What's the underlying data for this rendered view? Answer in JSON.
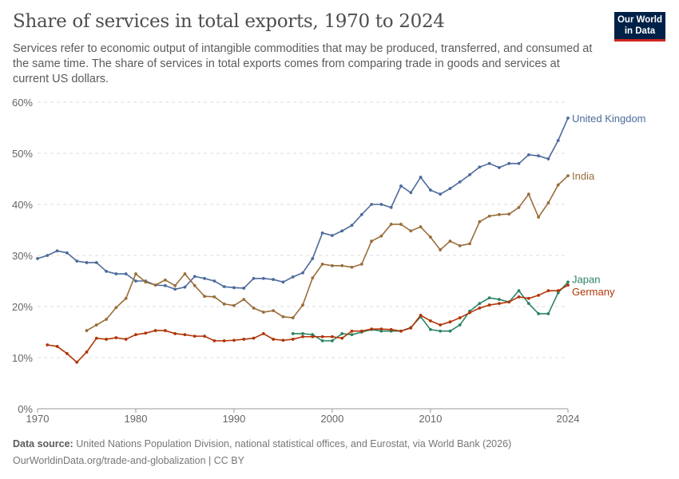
{
  "header": {
    "title": "Share of services in total exports, 1970 to 2024",
    "subtitle": "Services refer to economic output of intangible commodities that may be produced, transferred, and consumed at the same time. The share of services in total exports comes from comparing trade in goods and services at current US dollars.",
    "logo": "Our World in Data"
  },
  "footer": {
    "source_label": "Data source:",
    "source": "United Nations Population Division, national statistical offices, and Eurostat, via World Bank (2026)",
    "url": "OurWorldinData.org/trade-and-globalization | CC BY"
  },
  "chart_data": {
    "type": "line",
    "title": "Share of services in total exports, 1970 to 2024",
    "xlim": [
      1970,
      2024
    ],
    "ylim": [
      0,
      60
    ],
    "grid": true,
    "y_unit": "%",
    "xticks": [
      1970,
      1980,
      1990,
      2000,
      2010,
      2024
    ],
    "yticks": [
      0,
      10,
      20,
      30,
      40,
      50,
      60
    ],
    "ytick_labels": [
      "0%",
      "10%",
      "20%",
      "30%",
      "40%",
      "50%",
      "60%"
    ],
    "legend": "right-inline labels",
    "series": [
      {
        "name": "United Kingdom",
        "color": "#4c6a9c",
        "start": 1970,
        "values": [
          29.4,
          30.0,
          30.9,
          30.5,
          28.9,
          28.6,
          28.6,
          26.9,
          26.4,
          26.4,
          25.0,
          25.0,
          24.2,
          24.1,
          23.4,
          23.8,
          25.9,
          25.5,
          25.0,
          23.9,
          23.7,
          23.6,
          25.5,
          25.5,
          25.3,
          24.8,
          25.8,
          26.6,
          29.4,
          34.4,
          33.9,
          34.8,
          35.9,
          38.0,
          40.0,
          40.0,
          39.4,
          43.6,
          42.3,
          45.3,
          42.8,
          42.0,
          43.1,
          44.4,
          45.8,
          47.3,
          48.0,
          47.2,
          48.0,
          48.0,
          49.7,
          49.5,
          48.9,
          52.5,
          56.9
        ]
      },
      {
        "name": "India",
        "color": "#996d39",
        "start": 1975,
        "values": [
          15.3,
          16.4,
          17.5,
          19.8,
          21.6,
          26.4,
          24.8,
          24.2,
          25.2,
          24.1,
          26.4,
          24.1,
          22.0,
          21.9,
          20.5,
          20.2,
          21.4,
          19.7,
          18.9,
          19.2,
          18.0,
          17.8,
          20.3,
          25.6,
          28.3,
          28.0,
          28.0,
          27.7,
          28.3,
          32.8,
          33.8,
          36.1,
          36.1,
          34.8,
          35.6,
          33.6,
          31.1,
          32.8,
          31.9,
          32.3,
          36.6,
          37.7,
          38.0,
          38.1,
          39.4,
          42.0,
          37.5,
          40.3,
          43.8,
          45.6
        ]
      },
      {
        "name": "Japan",
        "color": "#2c8465",
        "start": 1996,
        "values": [
          14.7,
          14.7,
          14.5,
          13.3,
          13.3,
          14.7,
          14.5,
          15.0,
          15.5,
          15.2,
          15.2,
          15.2,
          15.9,
          18.0,
          15.5,
          15.2,
          15.2,
          16.4,
          19.1,
          20.6,
          21.7,
          21.4,
          20.9,
          23.1,
          20.6,
          18.6,
          18.6,
          22.7,
          24.8
        ]
      },
      {
        "name": "Germany",
        "color": "#b13507",
        "start": 1971,
        "values": [
          12.5,
          12.2,
          10.8,
          9.1,
          11.1,
          13.8,
          13.6,
          13.9,
          13.6,
          14.5,
          14.8,
          15.3,
          15.3,
          14.7,
          14.5,
          14.2,
          14.2,
          13.3,
          13.3,
          13.4,
          13.6,
          13.8,
          14.7,
          13.6,
          13.4,
          13.6,
          14.1,
          14.1,
          14.1,
          14.1,
          13.8,
          15.2,
          15.2,
          15.6,
          15.6,
          15.5,
          15.2,
          15.8,
          18.3,
          17.2,
          16.4,
          17.0,
          17.8,
          18.8,
          19.7,
          20.3,
          20.6,
          20.9,
          21.9,
          21.6,
          22.2,
          23.1,
          23.1,
          24.2
        ]
      }
    ]
  }
}
